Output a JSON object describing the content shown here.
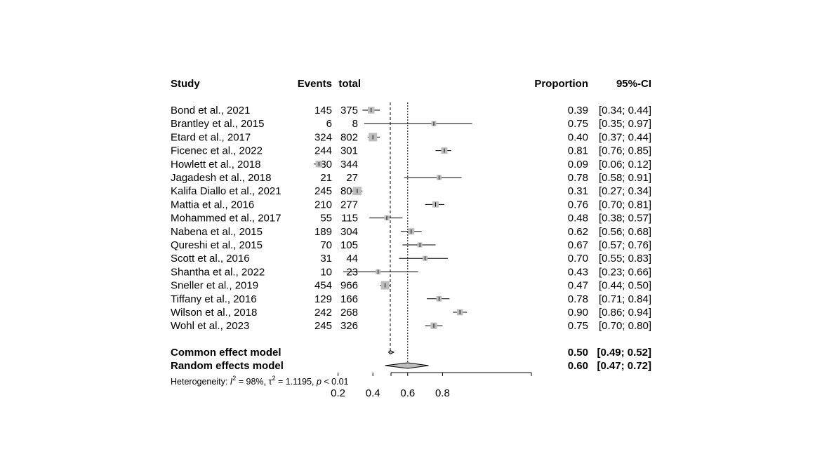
{
  "chart_data": {
    "type": "forest",
    "headers": {
      "study": "Study",
      "events": "Events",
      "total": "total",
      "proportion": "Proportion",
      "ci": "95%-CI"
    },
    "studies": [
      {
        "study": "Bond et al., 2021",
        "events": "145",
        "total": "375",
        "proportion": 0.39,
        "lower": 0.34,
        "upper": 0.44,
        "prop_text": "0.39",
        "ci_text": "[0.34; 0.44]"
      },
      {
        "study": "Brantley et al., 2015",
        "events": "6",
        "total": "8",
        "proportion": 0.75,
        "lower": 0.35,
        "upper": 0.97,
        "prop_text": "0.75",
        "ci_text": "[0.35; 0.97]"
      },
      {
        "study": "Etard et al., 2017",
        "events": "324",
        "total": "802",
        "proportion": 0.4,
        "lower": 0.37,
        "upper": 0.44,
        "prop_text": "0.40",
        "ci_text": "[0.37; 0.44]"
      },
      {
        "study": "Ficenec et al., 2022",
        "events": "244",
        "total": "301",
        "proportion": 0.81,
        "lower": 0.76,
        "upper": 0.85,
        "prop_text": "0.81",
        "ci_text": "[0.76; 0.85]"
      },
      {
        "study": "Howlett et al., 2018",
        "events": "30",
        "total": "344",
        "proportion": 0.09,
        "lower": 0.06,
        "upper": 0.12,
        "prop_text": "0.09",
        "ci_text": "[0.06; 0.12]"
      },
      {
        "study": "Jagadesh et al., 2018",
        "events": "21",
        "total": "27",
        "proportion": 0.78,
        "lower": 0.58,
        "upper": 0.91,
        "prop_text": "0.78",
        "ci_text": "[0.58; 0.91]"
      },
      {
        "study": "Kalifa Diallo et al., 2021",
        "events": "245",
        "total": "802",
        "proportion": 0.31,
        "lower": 0.27,
        "upper": 0.34,
        "prop_text": "0.31",
        "ci_text": "[0.27; 0.34]"
      },
      {
        "study": "Mattia et al., 2016",
        "events": "210",
        "total": "277",
        "proportion": 0.76,
        "lower": 0.7,
        "upper": 0.81,
        "prop_text": "0.76",
        "ci_text": "[0.70; 0.81]"
      },
      {
        "study": "Mohammed et al., 2017",
        "events": "55",
        "total": "115",
        "proportion": 0.48,
        "lower": 0.38,
        "upper": 0.57,
        "prop_text": "0.48",
        "ci_text": "[0.38; 0.57]"
      },
      {
        "study": "Nabena et al., 2015",
        "events": "189",
        "total": "304",
        "proportion": 0.62,
        "lower": 0.56,
        "upper": 0.68,
        "prop_text": "0.62",
        "ci_text": "[0.56; 0.68]"
      },
      {
        "study": "Qureshi et al., 2015",
        "events": "70",
        "total": "105",
        "proportion": 0.67,
        "lower": 0.57,
        "upper": 0.76,
        "prop_text": "0.67",
        "ci_text": "[0.57; 0.76]"
      },
      {
        "study": "Scott et al., 2016",
        "events": "31",
        "total": "44",
        "proportion": 0.7,
        "lower": 0.55,
        "upper": 0.83,
        "prop_text": "0.70",
        "ci_text": "[0.55; 0.83]"
      },
      {
        "study": "Shantha et al., 2022",
        "events": "10",
        "total": "23",
        "proportion": 0.43,
        "lower": 0.23,
        "upper": 0.66,
        "prop_text": "0.43",
        "ci_text": "[0.23; 0.66]"
      },
      {
        "study": "Sneller et al., 2019",
        "events": "454",
        "total": "966",
        "proportion": 0.47,
        "lower": 0.44,
        "upper": 0.5,
        "prop_text": "0.47",
        "ci_text": "[0.44; 0.50]"
      },
      {
        "study": "Tiffany et al., 2016",
        "events": "129",
        "total": "166",
        "proportion": 0.78,
        "lower": 0.71,
        "upper": 0.84,
        "prop_text": "0.78",
        "ci_text": "[0.71; 0.84]"
      },
      {
        "study": "Wilson et al., 2018",
        "events": "242",
        "total": "268",
        "proportion": 0.9,
        "lower": 0.86,
        "upper": 0.94,
        "prop_text": "0.90",
        "ci_text": "[0.86; 0.94]"
      },
      {
        "study": "Wohl et al., 2023",
        "events": "245",
        "total": "326",
        "proportion": 0.75,
        "lower": 0.7,
        "upper": 0.8,
        "prop_text": "0.75",
        "ci_text": "[0.70; 0.80]"
      }
    ],
    "models": [
      {
        "label": "Common effect model",
        "proportion": 0.5,
        "lower": 0.49,
        "upper": 0.52,
        "prop_text": "0.50",
        "ci_text": "[0.49; 0.52]",
        "line_style": "dashed"
      },
      {
        "label": "Random effects model",
        "proportion": 0.6,
        "lower": 0.47,
        "upper": 0.72,
        "prop_text": "0.60",
        "ci_text": "[0.47; 0.72]",
        "line_style": "dotted"
      }
    ],
    "heterogeneity": {
      "prefix": "Heterogeneity: ",
      "i2_symbol": "I",
      "i2_value": " = 98%, ",
      "tau_symbol": "τ",
      "tau_value": " = 1.1195, ",
      "p_symbol": "p",
      "p_value": " < 0.01"
    },
    "x_ticks": [
      "0.2",
      "0.4",
      "0.6",
      "0.8"
    ],
    "xlim": [
      0.0,
      1.0
    ],
    "colors": {
      "square": "#bdbdbd",
      "line": "#000000",
      "diamond": "#bdbdbd"
    }
  }
}
